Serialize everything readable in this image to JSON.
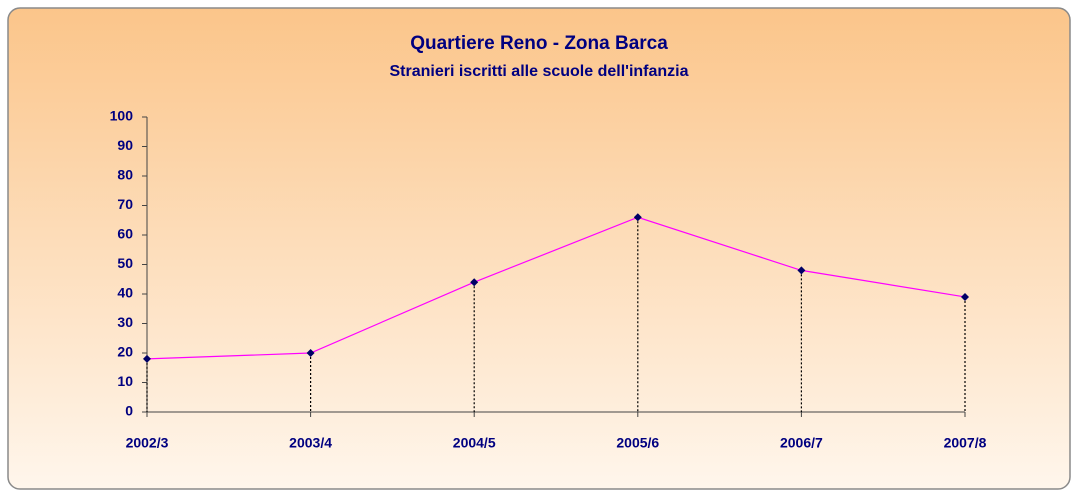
{
  "chart_data": {
    "type": "line",
    "title": "Quartiere Reno - Zona Barca",
    "subtitle": "Stranieri iscritti alle scuole dell'infanzia",
    "categories": [
      "2002/3",
      "2003/4",
      "2004/5",
      "2005/6",
      "2006/7",
      "2007/8"
    ],
    "values": [
      18,
      20,
      44,
      66,
      48,
      39
    ],
    "color": "#ff00ff",
    "marker_color": "#000066",
    "ylim": [
      0,
      100
    ],
    "yticks": [
      0,
      10,
      20,
      30,
      40,
      50,
      60,
      70,
      80,
      90,
      100
    ],
    "grid": false,
    "drop_lines": true
  }
}
